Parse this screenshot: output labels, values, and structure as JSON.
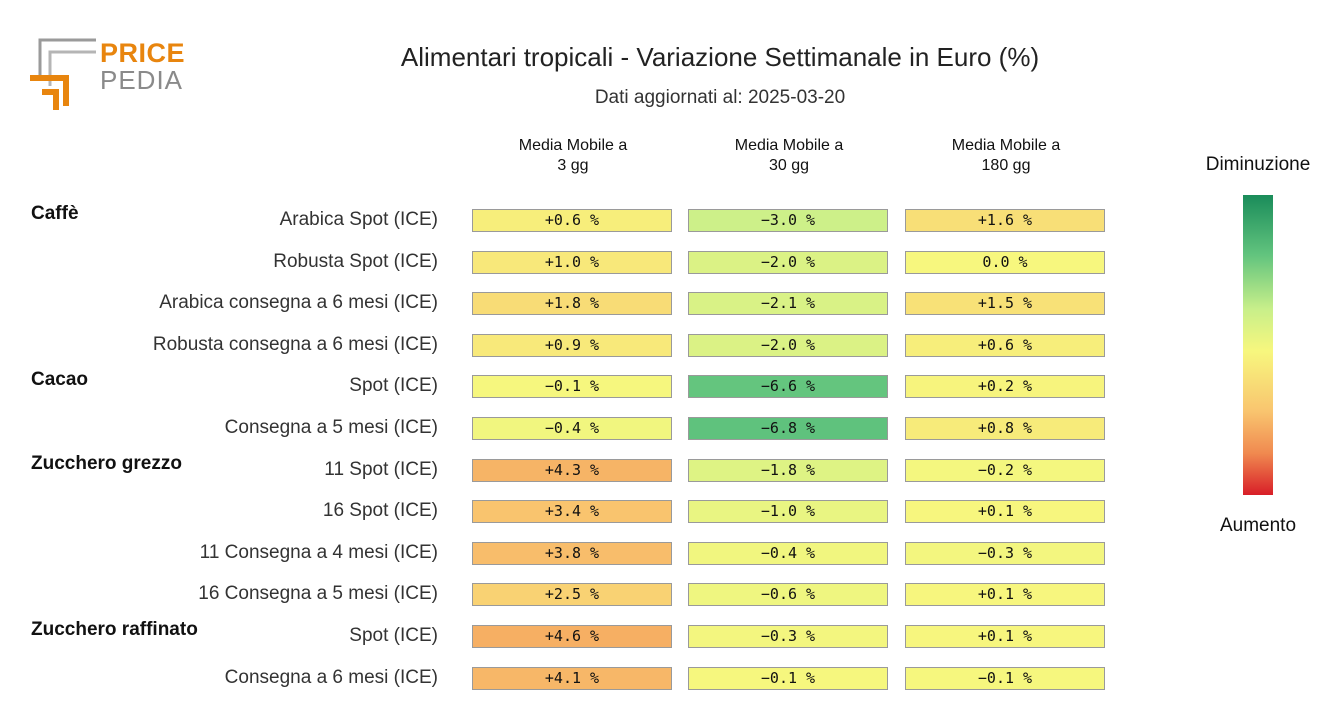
{
  "logo": {
    "price": "PRICE",
    "pedia": "PEDIA",
    "primary_color": "#e8850e",
    "secondary_color": "#8a8a8a"
  },
  "chart_data": {
    "type": "heatmap",
    "title": "Alimentari tropicali - Variazione Settimanale in Euro (%)",
    "subtitle": "Dati aggiornati al: 2025-03-20",
    "columns": [
      "Media Mobile a\n3 gg",
      "Media Mobile a\n30 gg",
      "Media Mobile a\n180 gg"
    ],
    "groups": [
      {
        "name": "Caffè",
        "start_row": 0
      },
      {
        "name": "Cacao",
        "start_row": 4
      },
      {
        "name": "Zucchero grezzo",
        "start_row": 6
      },
      {
        "name": "Zucchero raffinato",
        "start_row": 10
      }
    ],
    "rows": [
      {
        "label": "Arabica Spot (ICE)",
        "values": [
          0.6,
          -3.0,
          1.6
        ],
        "texts": [
          "+0.6 %",
          "−3.0 %",
          "+1.6 %"
        ]
      },
      {
        "label": "Robusta Spot (ICE)",
        "values": [
          1.0,
          -2.0,
          0.0
        ],
        "texts": [
          "+1.0 %",
          "−2.0 %",
          "0.0 %"
        ]
      },
      {
        "label": "Arabica consegna a 6 mesi (ICE)",
        "values": [
          1.8,
          -2.1,
          1.5
        ],
        "texts": [
          "+1.8 %",
          "−2.1 %",
          "+1.5 %"
        ]
      },
      {
        "label": "Robusta consegna a 6 mesi (ICE)",
        "values": [
          0.9,
          -2.0,
          0.6
        ],
        "texts": [
          "+0.9 %",
          "−2.0 %",
          "+0.6 %"
        ]
      },
      {
        "label": "Spot (ICE)",
        "values": [
          -0.1,
          -6.6,
          0.2
        ],
        "texts": [
          "−0.1 %",
          "−6.6 %",
          "+0.2 %"
        ]
      },
      {
        "label": "Consegna a 5 mesi (ICE)",
        "values": [
          -0.4,
          -6.8,
          0.8
        ],
        "texts": [
          "−0.4 %",
          "−6.8 %",
          "+0.8 %"
        ]
      },
      {
        "label": "11 Spot (ICE)",
        "values": [
          4.3,
          -1.8,
          -0.2
        ],
        "texts": [
          "+4.3 %",
          "−1.8 %",
          "−0.2 %"
        ]
      },
      {
        "label": "16 Spot (ICE)",
        "values": [
          3.4,
          -1.0,
          0.1
        ],
        "texts": [
          "+3.4 %",
          "−1.0 %",
          "+0.1 %"
        ]
      },
      {
        "label": "11 Consegna a 4 mesi (ICE)",
        "values": [
          3.8,
          -0.4,
          -0.3
        ],
        "texts": [
          "+3.8 %",
          "−0.4 %",
          "−0.3 %"
        ]
      },
      {
        "label": "16 Consegna a 5 mesi (ICE)",
        "values": [
          2.5,
          -0.6,
          0.1
        ],
        "texts": [
          "+2.5 %",
          "−0.6 %",
          "+0.1 %"
        ]
      },
      {
        "label": "Spot (ICE)",
        "values": [
          4.6,
          -0.3,
          0.1
        ],
        "texts": [
          "+4.6 %",
          "−0.3 %",
          "+0.1 %"
        ]
      },
      {
        "label": "Consegna a 6 mesi (ICE)",
        "values": [
          4.1,
          -0.1,
          -0.1
        ],
        "texts": [
          "+4.1 %",
          "−0.1 %",
          "−0.1 %"
        ]
      }
    ],
    "legend": {
      "top_label": "Diminuzione",
      "bottom_label": "Aumento",
      "placement": "right"
    },
    "color_scale": [
      "#1a8c5a",
      "#62c47e",
      "#c8ef8a",
      "#f7f77e",
      "#f9c56f",
      "#f08a50",
      "#d81e28"
    ],
    "value_range": [
      -10,
      10
    ]
  }
}
